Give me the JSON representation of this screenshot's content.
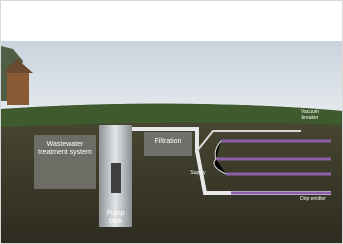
{
  "labels": {
    "treatment": "Wastewater treatment system",
    "filtration": "Filtration",
    "pump_tank": "Pump tank",
    "supply": "Supply",
    "vacuum_breaker": "Vacuum breaker",
    "drip_emitter": "Drip emitter"
  }
}
